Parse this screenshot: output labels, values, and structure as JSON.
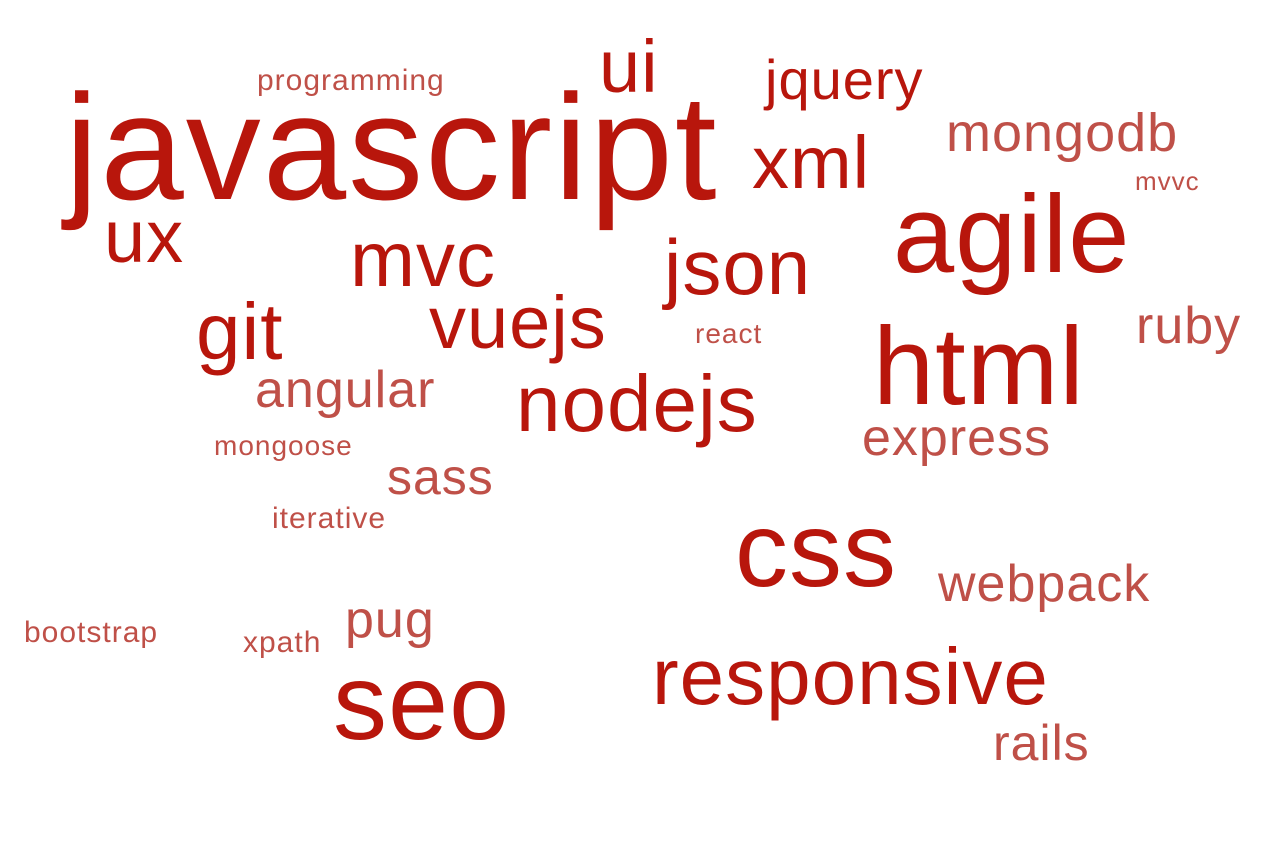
{
  "colors": {
    "background": "#ffffff",
    "strong": "#b8160c",
    "soft": "#bf5048"
  },
  "words": {
    "javascript": "javascript",
    "agile": "agile",
    "html": "html",
    "css": "css",
    "seo": "seo",
    "responsive": "responsive",
    "nodejs": "nodejs",
    "json": "json",
    "mvc": "mvc",
    "vuejs": "vuejs",
    "git": "git",
    "xml": "xml",
    "ui": "ui",
    "ux": "ux",
    "jquery": "jquery",
    "mongodb": "mongodb",
    "ruby": "ruby",
    "angular": "angular",
    "express": "express",
    "sass": "sass",
    "webpack": "webpack",
    "pug": "pug",
    "rails": "rails",
    "programming": "programming",
    "mvvc": "mvvc",
    "react": "react",
    "mongoose": "mongoose",
    "iterative": "iterative",
    "bootstrap": "bootstrap",
    "xpath": "xpath"
  }
}
